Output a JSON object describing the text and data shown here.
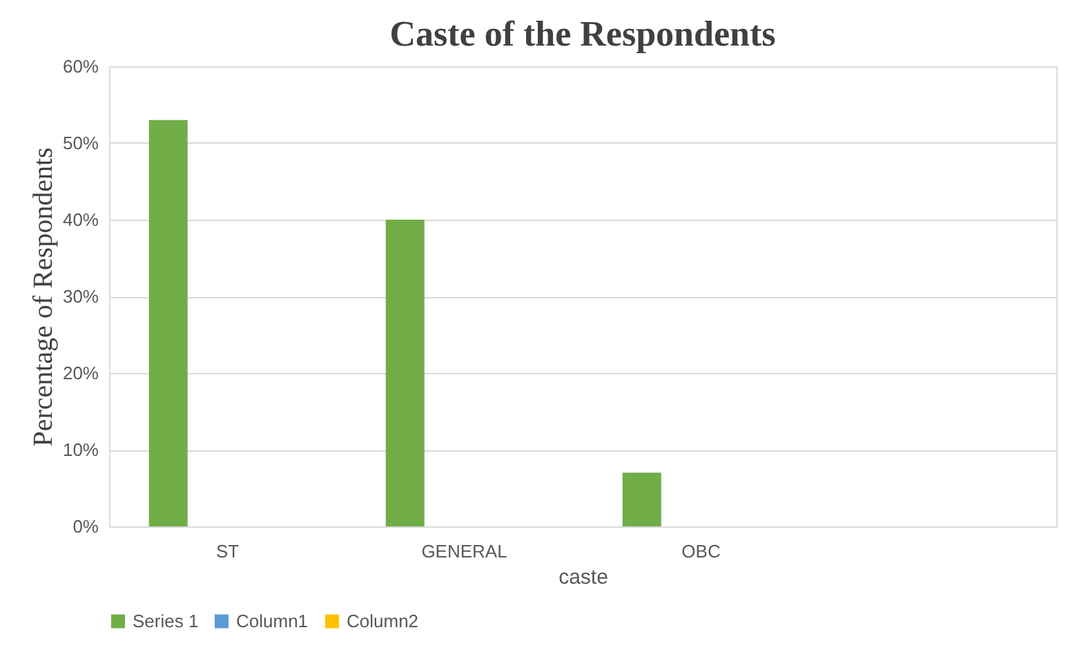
{
  "chart_data": {
    "type": "bar",
    "title": "Caste of the Respondents",
    "xlabel": "caste",
    "ylabel": "Percentage of Respondents",
    "categories": [
      "ST",
      "GENERAL",
      "OBC",
      null
    ],
    "series": [
      {
        "name": "Series 1",
        "color": "#70ad47",
        "values": [
          53,
          40,
          7,
          null
        ]
      },
      {
        "name": "Column1",
        "color": "#5b9bd5",
        "values": [
          null,
          null,
          null,
          null
        ]
      },
      {
        "name": "Column2",
        "color": "#ffc000",
        "values": [
          null,
          null,
          null,
          null
        ]
      }
    ],
    "ylim": [
      0,
      60
    ],
    "yticks": [
      {
        "value": 0,
        "label": "0%"
      },
      {
        "value": 10,
        "label": "10%"
      },
      {
        "value": 20,
        "label": "20%"
      },
      {
        "value": 30,
        "label": "30%"
      },
      {
        "value": 40,
        "label": "40%"
      },
      {
        "value": 50,
        "label": "50%"
      },
      {
        "value": 60,
        "label": "60%"
      }
    ],
    "grid": "y",
    "legend": "bottom"
  }
}
